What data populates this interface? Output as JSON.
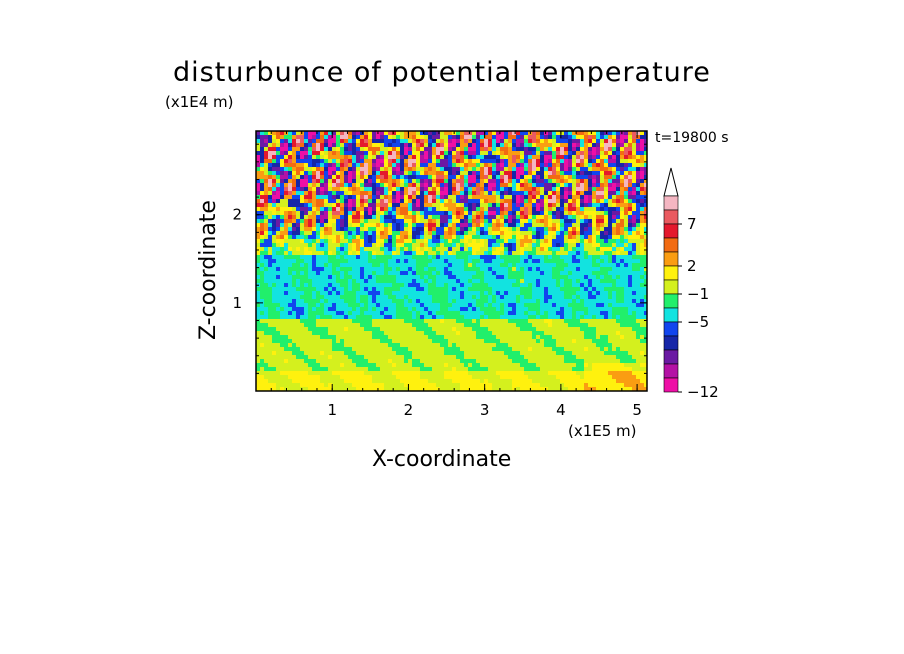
{
  "chart_data": {
    "type": "heatmap",
    "title": "disturbunce of potential temperature",
    "xlabel": "X-coordinate",
    "ylabel": "Z-coordinate",
    "x_unit": "(x1E5 m)",
    "y_unit": "(x1E4 m)",
    "time_label": "t=19800 s",
    "xlim": [
      0,
      5.13
    ],
    "ylim": [
      0,
      2.95
    ],
    "x_ticks": [
      "1",
      "2",
      "3",
      "4",
      "5"
    ],
    "x_tick_values": [
      1,
      2,
      3,
      4,
      5
    ],
    "y_ticks": [
      "1",
      "2"
    ],
    "y_tick_values": [
      1,
      2
    ],
    "grid": false,
    "colorbar": {
      "extend": "max",
      "tick_labels": [
        "7",
        "2",
        "−1",
        "−5",
        "−12"
      ],
      "tick_values": [
        7,
        2,
        -1,
        -5,
        -12
      ],
      "colors": [
        "#f4b6c2",
        "#ea5a60",
        "#e4182d",
        "#f26b12",
        "#fa9d12",
        "#fff10e",
        "#d4f01e",
        "#21ef6b",
        "#12e3e0",
        "#1145ee",
        "#1626a8",
        "#6b1aa3",
        "#b411a5",
        "#ee0fa6"
      ]
    },
    "field_description": "layered field: yellow/light-green near surface, green band around Z=1, alternating warm/cold cells (red-orange vs blue) in upper layer above Z=1.8"
  }
}
